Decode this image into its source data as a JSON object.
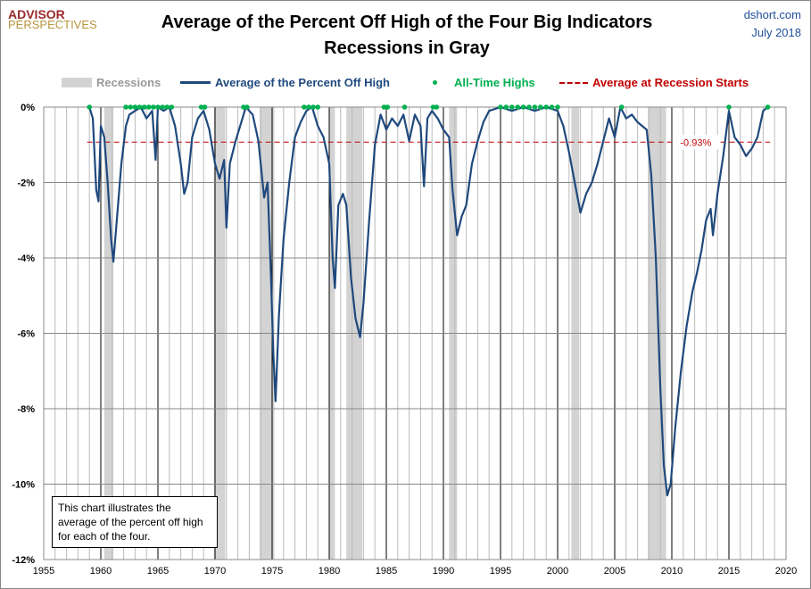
{
  "header": {
    "logo_top": "ADVISOR",
    "logo_bottom": "PERSPECTIVES",
    "source": "dshort.com",
    "date": "July 2018"
  },
  "chart_data": {
    "type": "line",
    "title": "Average of the Percent Off High of the Four Big Indicators",
    "subtitle": "Recessions in Gray",
    "xlim": [
      1955,
      2020
    ],
    "ylim": [
      -12,
      0
    ],
    "xticks": [
      1955,
      1960,
      1965,
      1970,
      1975,
      1980,
      1985,
      1990,
      1995,
      2000,
      2005,
      2010,
      2015,
      2020
    ],
    "yticks": [
      0,
      -2,
      -4,
      -6,
      -8,
      -10,
      -12
    ],
    "ytick_labels": [
      "0%",
      "-2%",
      "-4%",
      "-6%",
      "-8%",
      "-10%",
      "-12%"
    ],
    "legend": {
      "recessions": "Recessions",
      "line": "Average of the Percent Off High",
      "ath": "All-Time Highs",
      "avg": "Average at Recession Starts"
    },
    "recessions": [
      [
        1960.3,
        1961.1
      ],
      [
        1969.9,
        1970.9
      ],
      [
        1973.9,
        1975.2
      ],
      [
        1980.0,
        1980.5
      ],
      [
        1981.5,
        1982.9
      ],
      [
        1990.5,
        1991.2
      ],
      [
        2001.2,
        2001.9
      ],
      [
        2007.9,
        2009.5
      ]
    ],
    "avg_at_recession_start": -0.93,
    "avg_label": "-0.93%",
    "series": [
      [
        1959.0,
        0
      ],
      [
        1959.3,
        -0.3
      ],
      [
        1959.6,
        -2.2
      ],
      [
        1959.8,
        -2.5
      ],
      [
        1960.0,
        -0.5
      ],
      [
        1960.3,
        -0.8
      ],
      [
        1960.6,
        -2.0
      ],
      [
        1960.9,
        -3.5
      ],
      [
        1961.1,
        -4.1
      ],
      [
        1961.4,
        -3.0
      ],
      [
        1961.8,
        -1.5
      ],
      [
        1962.2,
        -0.5
      ],
      [
        1962.5,
        -0.2
      ],
      [
        1963,
        -0.1
      ],
      [
        1963.5,
        0
      ],
      [
        1964,
        -0.3
      ],
      [
        1964.5,
        -0.1
      ],
      [
        1964.8,
        -1.4
      ],
      [
        1965,
        0
      ],
      [
        1965.5,
        -0.1
      ],
      [
        1966,
        0
      ],
      [
        1966.5,
        -0.5
      ],
      [
        1967,
        -1.5
      ],
      [
        1967.3,
        -2.3
      ],
      [
        1967.6,
        -2.0
      ],
      [
        1968,
        -0.8
      ],
      [
        1968.5,
        -0.3
      ],
      [
        1969,
        -0.1
      ],
      [
        1969.5,
        -0.6
      ],
      [
        1970,
        -1.5
      ],
      [
        1970.4,
        -1.9
      ],
      [
        1970.8,
        -1.4
      ],
      [
        1971,
        -3.2
      ],
      [
        1971.3,
        -1.5
      ],
      [
        1971.8,
        -0.9
      ],
      [
        1972.3,
        -0.4
      ],
      [
        1972.7,
        0
      ],
      [
        1973.3,
        -0.2
      ],
      [
        1973.8,
        -0.9
      ],
      [
        1974.3,
        -2.4
      ],
      [
        1974.6,
        -2.0
      ],
      [
        1974.9,
        -4.5
      ],
      [
        1975.1,
        -6.5
      ],
      [
        1975.3,
        -7.8
      ],
      [
        1975.6,
        -5.5
      ],
      [
        1976,
        -3.5
      ],
      [
        1976.5,
        -2.0
      ],
      [
        1977,
        -0.8
      ],
      [
        1977.5,
        -0.4
      ],
      [
        1978,
        -0.1
      ],
      [
        1978.5,
        0
      ],
      [
        1979,
        -0.5
      ],
      [
        1979.5,
        -0.8
      ],
      [
        1980,
        -1.5
      ],
      [
        1980.3,
        -4.0
      ],
      [
        1980.5,
        -4.8
      ],
      [
        1980.8,
        -2.6
      ],
      [
        1981.2,
        -2.3
      ],
      [
        1981.5,
        -2.6
      ],
      [
        1981.9,
        -4.5
      ],
      [
        1982.3,
        -5.6
      ],
      [
        1982.7,
        -6.1
      ],
      [
        1983,
        -5.2
      ],
      [
        1983.5,
        -3.0
      ],
      [
        1984,
        -1.0
      ],
      [
        1984.5,
        -0.2
      ],
      [
        1985,
        -0.6
      ],
      [
        1985.5,
        -0.3
      ],
      [
        1986,
        -0.5
      ],
      [
        1986.5,
        -0.2
      ],
      [
        1987,
        -0.9
      ],
      [
        1987.5,
        -0.2
      ],
      [
        1988,
        -0.5
      ],
      [
        1988.3,
        -2.1
      ],
      [
        1988.6,
        -0.3
      ],
      [
        1989,
        -0.1
      ],
      [
        1989.5,
        -0.3
      ],
      [
        1990,
        -0.6
      ],
      [
        1990.5,
        -0.8
      ],
      [
        1990.8,
        -2.2
      ],
      [
        1991.2,
        -3.4
      ],
      [
        1991.6,
        -2.9
      ],
      [
        1992,
        -2.6
      ],
      [
        1992.5,
        -1.5
      ],
      [
        1993,
        -0.9
      ],
      [
        1993.5,
        -0.4
      ],
      [
        1994,
        -0.1
      ],
      [
        1995,
        0
      ],
      [
        1996,
        -0.1
      ],
      [
        1997,
        0
      ],
      [
        1998,
        -0.1
      ],
      [
        1999,
        0
      ],
      [
        2000,
        -0.1
      ],
      [
        2000.5,
        -0.5
      ],
      [
        2001,
        -1.2
      ],
      [
        2001.5,
        -2.0
      ],
      [
        2002,
        -2.8
      ],
      [
        2002.5,
        -2.3
      ],
      [
        2003,
        -2.0
      ],
      [
        2003.5,
        -1.5
      ],
      [
        2004,
        -0.9
      ],
      [
        2004.5,
        -0.3
      ],
      [
        2005,
        -0.8
      ],
      [
        2005.5,
        0
      ],
      [
        2006,
        -0.3
      ],
      [
        2006.5,
        -0.2
      ],
      [
        2007,
        -0.4
      ],
      [
        2007.8,
        -0.6
      ],
      [
        2008.2,
        -1.8
      ],
      [
        2008.6,
        -4.0
      ],
      [
        2009,
        -7.5
      ],
      [
        2009.3,
        -9.5
      ],
      [
        2009.6,
        -10.3
      ],
      [
        2009.9,
        -10.0
      ],
      [
        2010.3,
        -8.5
      ],
      [
        2010.8,
        -7.0
      ],
      [
        2011.3,
        -5.8
      ],
      [
        2011.8,
        -4.9
      ],
      [
        2012.2,
        -4.4
      ],
      [
        2012.6,
        -3.8
      ],
      [
        2013,
        -3.0
      ],
      [
        2013.4,
        -2.7
      ],
      [
        2013.6,
        -3.4
      ],
      [
        2014,
        -2.3
      ],
      [
        2014.5,
        -1.3
      ],
      [
        2015,
        -0.1
      ],
      [
        2015.5,
        -0.8
      ],
      [
        2016,
        -1.0
      ],
      [
        2016.5,
        -1.3
      ],
      [
        2017,
        -1.1
      ],
      [
        2017.5,
        -0.8
      ],
      [
        2018,
        -0.1
      ],
      [
        2018.4,
        0
      ]
    ],
    "all_time_highs": [
      1959.0,
      1962.2,
      1962.6,
      1963.0,
      1963.4,
      1963.8,
      1964.2,
      1964.6,
      1965.0,
      1965.4,
      1965.8,
      1966.2,
      1968.8,
      1969.1,
      1972.5,
      1972.8,
      1977.8,
      1978.2,
      1978.6,
      1979.0,
      1984.8,
      1985.1,
      1986.6,
      1989.1,
      1989.4,
      1995.0,
      1995.5,
      1996.0,
      1996.5,
      1997.0,
      1997.5,
      1998.0,
      1998.5,
      1999.0,
      1999.5,
      2000.0,
      2005.6,
      2015.0,
      2018.4
    ],
    "colors": {
      "line": "#1f497d",
      "recession": "#d3d3d3",
      "ath": "#00b050",
      "avg": "#c00000"
    }
  },
  "note": "This chart illustrates the average of the percent off high for each of the four."
}
